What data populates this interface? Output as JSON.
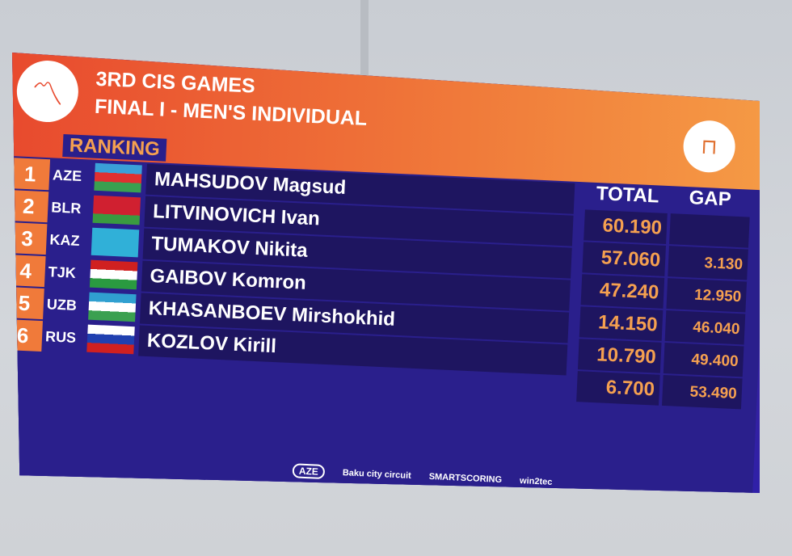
{
  "header": {
    "title": "3RD CIS GAMES",
    "subtitle": "FINAL I - MEN'S INDIVIDUAL",
    "section": "RANKING",
    "logo_icon": "gymnast-icon",
    "apparatus_icon": "trampoline-icon"
  },
  "columns": {
    "total": "TOTAL",
    "gap": "GAP"
  },
  "rows": [
    {
      "rank": "1",
      "country": "AZE",
      "name": "MAHSUDOV Magsud",
      "total": "60.190",
      "gap": ""
    },
    {
      "rank": "2",
      "country": "BLR",
      "name": "LITVINOVICH Ivan",
      "total": "57.060",
      "gap": "3.130"
    },
    {
      "rank": "3",
      "country": "KAZ",
      "name": "TUMAKOV Nikita",
      "total": "47.240",
      "gap": "12.950"
    },
    {
      "rank": "4",
      "country": "TJK",
      "name": "GAIBOV Komron",
      "total": "14.150",
      "gap": "46.040"
    },
    {
      "rank": "5",
      "country": "UZB",
      "name": "KHASANBOEV Mirshokhid",
      "total": "10.790",
      "gap": "49.400"
    },
    {
      "rank": "6",
      "country": "RUS",
      "name": "KOZLOV Kirill",
      "total": "6.700",
      "gap": "53.490"
    }
  ],
  "sponsors": [
    "AZE",
    "Baku city circuit",
    "SMARTSCORING",
    "win2tec"
  ],
  "colors": {
    "header": "#f07a3a",
    "board": "#2a1f8c",
    "score": "#f5a050"
  }
}
